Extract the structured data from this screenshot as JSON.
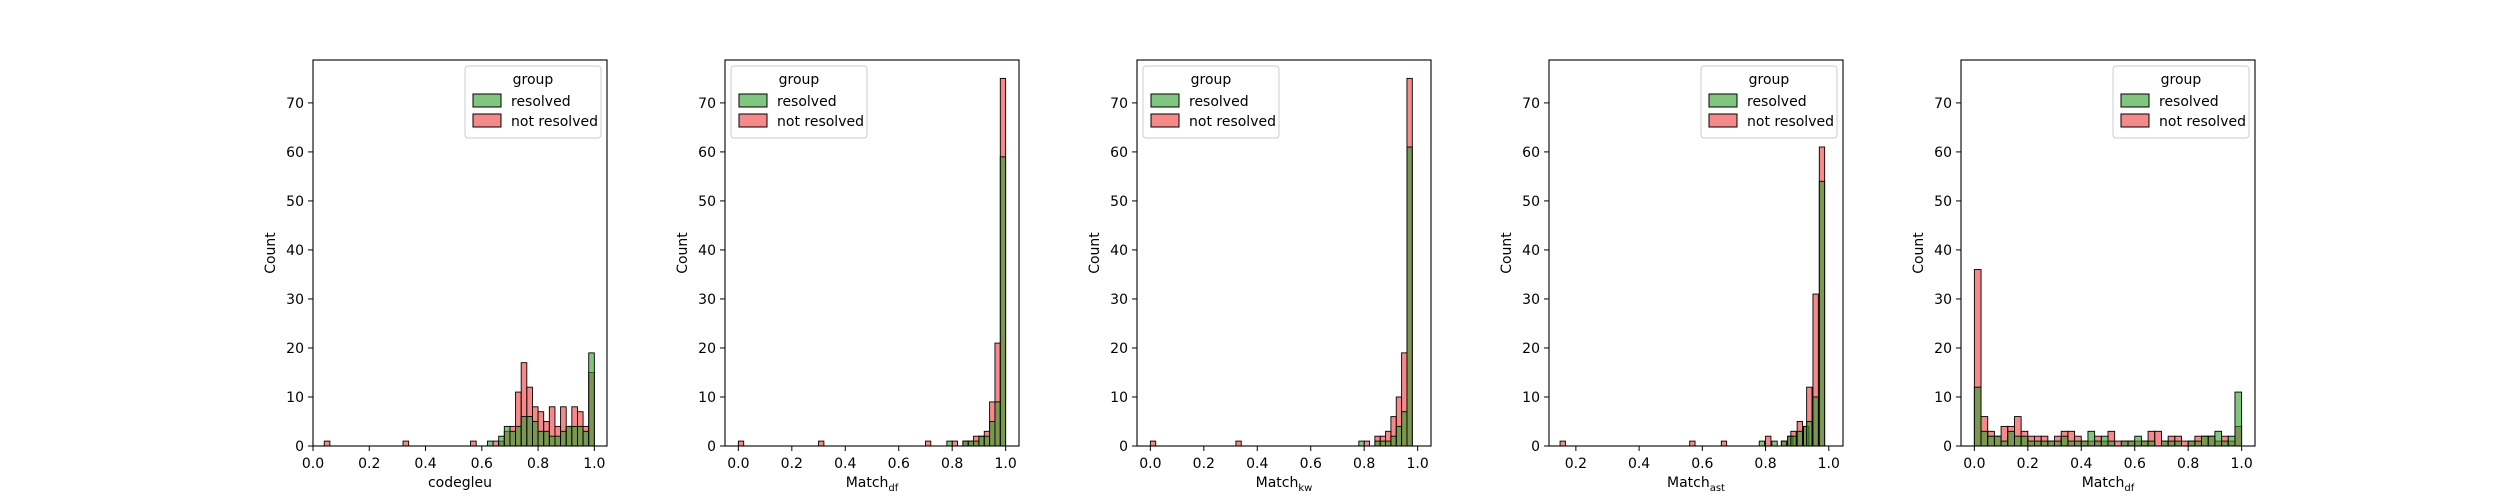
{
  "figure": {
    "background": "#ffffff"
  },
  "legend": {
    "title": "group",
    "entries": [
      {
        "label": "resolved",
        "fill": "#2ca02c",
        "stroke": "#000000"
      },
      {
        "label": "not resolved",
        "fill": "#f03c3c",
        "stroke": "#000000"
      }
    ]
  },
  "chart_data": [
    {
      "type": "histogram",
      "xlabel": "codegleu",
      "xlabel_sub": "",
      "ylabel": "Count",
      "xlim": [
        0.0,
        1.045
      ],
      "ylim": [
        0,
        78.75
      ],
      "xticks": [
        "0.0",
        "0.2",
        "0.4",
        "0.6",
        "0.8",
        "1.0"
      ],
      "yticks": [
        "0",
        "10",
        "20",
        "30",
        "40",
        "50",
        "60",
        "70"
      ],
      "legend_position": "upper-right",
      "bin_width": 0.02,
      "series": [
        {
          "name": "not resolved",
          "bins": [
            [
              0.04,
              1
            ],
            [
              0.32,
              1
            ],
            [
              0.56,
              1
            ],
            [
              0.64,
              1
            ],
            [
              0.66,
              1
            ],
            [
              0.68,
              3
            ],
            [
              0.7,
              4
            ],
            [
              0.72,
              11
            ],
            [
              0.74,
              17
            ],
            [
              0.76,
              12
            ],
            [
              0.78,
              8
            ],
            [
              0.8,
              7
            ],
            [
              0.82,
              5
            ],
            [
              0.84,
              8
            ],
            [
              0.86,
              4
            ],
            [
              0.88,
              8
            ],
            [
              0.9,
              4
            ],
            [
              0.92,
              8
            ],
            [
              0.94,
              7
            ],
            [
              0.96,
              4
            ],
            [
              0.98,
              15
            ]
          ]
        },
        {
          "name": "resolved",
          "bins": [
            [
              0.62,
              1
            ],
            [
              0.66,
              2
            ],
            [
              0.68,
              4
            ],
            [
              0.7,
              3
            ],
            [
              0.72,
              4
            ],
            [
              0.74,
              6
            ],
            [
              0.76,
              6
            ],
            [
              0.78,
              5
            ],
            [
              0.8,
              3
            ],
            [
              0.82,
              3
            ],
            [
              0.84,
              2
            ],
            [
              0.86,
              2
            ],
            [
              0.88,
              3
            ],
            [
              0.9,
              4
            ],
            [
              0.92,
              4
            ],
            [
              0.94,
              4
            ],
            [
              0.96,
              3
            ],
            [
              0.98,
              19
            ]
          ]
        }
      ]
    },
    {
      "type": "histogram",
      "xlabel": "Match",
      "xlabel_sub": "df",
      "ylabel": "Count",
      "xlim": [
        -0.05,
        1.05
      ],
      "ylim": [
        0,
        78.75
      ],
      "xticks": [
        "0.0",
        "0.2",
        "0.4",
        "0.6",
        "0.8",
        "1.0"
      ],
      "yticks": [
        "0",
        "10",
        "20",
        "30",
        "40",
        "50",
        "60",
        "70"
      ],
      "legend_position": "upper-left",
      "bin_width": 0.02,
      "series": [
        {
          "name": "not resolved",
          "bins": [
            [
              0.0,
              1
            ],
            [
              0.3,
              1
            ],
            [
              0.7,
              1
            ],
            [
              0.8,
              1
            ],
            [
              0.84,
              1
            ],
            [
              0.86,
              1
            ],
            [
              0.88,
              2
            ],
            [
              0.9,
              2
            ],
            [
              0.92,
              3
            ],
            [
              0.94,
              9
            ],
            [
              0.96,
              21
            ],
            [
              0.98,
              75
            ]
          ]
        },
        {
          "name": "resolved",
          "bins": [
            [
              0.78,
              1
            ],
            [
              0.84,
              1
            ],
            [
              0.86,
              1
            ],
            [
              0.88,
              1
            ],
            [
              0.9,
              2
            ],
            [
              0.92,
              2
            ],
            [
              0.94,
              5
            ],
            [
              0.96,
              9
            ],
            [
              0.98,
              59
            ]
          ]
        }
      ]
    },
    {
      "type": "histogram",
      "xlabel": "Match",
      "xlabel_sub": "kw",
      "ylabel": "Count",
      "xlim": [
        -0.05,
        1.05
      ],
      "ylim": [
        0,
        78.75
      ],
      "xticks": [
        "0.0",
        "0.2",
        "0.4",
        "0.6",
        "0.8",
        "1.0"
      ],
      "yticks": [
        "0",
        "10",
        "20",
        "30",
        "40",
        "50",
        "60",
        "70"
      ],
      "legend_position": "upper-left",
      "bin_width": 0.02,
      "series": [
        {
          "name": "not resolved",
          "bins": [
            [
              0.0,
              1
            ],
            [
              0.32,
              1
            ],
            [
              0.8,
              1
            ],
            [
              0.84,
              2
            ],
            [
              0.86,
              2
            ],
            [
              0.88,
              3
            ],
            [
              0.9,
              6
            ],
            [
              0.92,
              10
            ],
            [
              0.94,
              19
            ],
            [
              0.96,
              75
            ]
          ]
        },
        {
          "name": "resolved",
          "bins": [
            [
              0.78,
              1
            ],
            [
              0.84,
              1
            ],
            [
              0.86,
              1
            ],
            [
              0.88,
              1
            ],
            [
              0.9,
              2
            ],
            [
              0.92,
              4
            ],
            [
              0.94,
              7
            ],
            [
              0.96,
              61
            ]
          ]
        }
      ]
    },
    {
      "type": "histogram",
      "xlabel": "Match",
      "xlabel_sub": "ast",
      "ylabel": "Count",
      "xlim": [
        0.115,
        1.045
      ],
      "ylim": [
        0,
        78.75
      ],
      "xticks": [
        "0.2",
        "0.4",
        "0.6",
        "0.8",
        "1.0"
      ],
      "yticks": [
        "0",
        "10",
        "20",
        "30",
        "40",
        "50",
        "60",
        "70"
      ],
      "legend_position": "upper-right",
      "bin_width": 0.017,
      "series": [
        {
          "name": "not resolved",
          "bins": [
            [
              0.15,
              1
            ],
            [
              0.56,
              1
            ],
            [
              0.66,
              1
            ],
            [
              0.8,
              2
            ],
            [
              0.85,
              1
            ],
            [
              0.87,
              2
            ],
            [
              0.88,
              3
            ],
            [
              0.9,
              5
            ],
            [
              0.92,
              4
            ],
            [
              0.93,
              12
            ],
            [
              0.95,
              31
            ],
            [
              0.97,
              61
            ]
          ]
        },
        {
          "name": "resolved",
          "bins": [
            [
              0.78,
              1
            ],
            [
              0.82,
              1
            ],
            [
              0.85,
              1
            ],
            [
              0.87,
              2
            ],
            [
              0.88,
              2
            ],
            [
              0.9,
              3
            ],
            [
              0.92,
              4
            ],
            [
              0.93,
              5
            ],
            [
              0.95,
              10
            ],
            [
              0.97,
              54
            ]
          ]
        }
      ]
    },
    {
      "type": "histogram",
      "xlabel": "Match",
      "xlabel_sub": "df",
      "ylabel": "Count",
      "xlim": [
        -0.05,
        1.05
      ],
      "ylim": [
        0,
        78.75
      ],
      "xticks": [
        "0.0",
        "0.2",
        "0.4",
        "0.6",
        "0.8",
        "1.0"
      ],
      "yticks": [
        "0",
        "10",
        "20",
        "30",
        "40",
        "50",
        "60",
        "70"
      ],
      "legend_position": "upper-right",
      "bin_width": 0.025,
      "series": [
        {
          "name": "not resolved",
          "bins": [
            [
              0.0,
              36
            ],
            [
              0.025,
              6
            ],
            [
              0.05,
              3
            ],
            [
              0.075,
              2
            ],
            [
              0.1,
              4
            ],
            [
              0.125,
              4
            ],
            [
              0.15,
              6
            ],
            [
              0.175,
              3
            ],
            [
              0.2,
              2
            ],
            [
              0.225,
              2
            ],
            [
              0.25,
              2
            ],
            [
              0.275,
              1
            ],
            [
              0.3,
              2
            ],
            [
              0.325,
              3
            ],
            [
              0.35,
              3
            ],
            [
              0.375,
              2
            ],
            [
              0.4,
              1
            ],
            [
              0.425,
              1
            ],
            [
              0.45,
              2
            ],
            [
              0.475,
              1
            ],
            [
              0.5,
              3
            ],
            [
              0.525,
              1
            ],
            [
              0.55,
              1
            ],
            [
              0.575,
              1
            ],
            [
              0.6,
              1
            ],
            [
              0.625,
              1
            ],
            [
              0.65,
              3
            ],
            [
              0.675,
              3
            ],
            [
              0.7,
              1
            ],
            [
              0.725,
              2
            ],
            [
              0.75,
              2
            ],
            [
              0.775,
              1
            ],
            [
              0.8,
              1
            ],
            [
              0.825,
              2
            ],
            [
              0.85,
              2
            ],
            [
              0.875,
              2
            ],
            [
              0.9,
              1
            ],
            [
              0.925,
              2
            ],
            [
              0.95,
              1
            ],
            [
              0.975,
              4
            ]
          ]
        },
        {
          "name": "resolved",
          "bins": [
            [
              0.0,
              12
            ],
            [
              0.025,
              3
            ],
            [
              0.05,
              2
            ],
            [
              0.075,
              2
            ],
            [
              0.1,
              1
            ],
            [
              0.125,
              3
            ],
            [
              0.15,
              2
            ],
            [
              0.175,
              2
            ],
            [
              0.2,
              1
            ],
            [
              0.225,
              1
            ],
            [
              0.25,
              1
            ],
            [
              0.275,
              1
            ],
            [
              0.3,
              1
            ],
            [
              0.325,
              2
            ],
            [
              0.35,
              1
            ],
            [
              0.375,
              1
            ],
            [
              0.4,
              1
            ],
            [
              0.425,
              3
            ],
            [
              0.45,
              1
            ],
            [
              0.475,
              2
            ],
            [
              0.5,
              1
            ],
            [
              0.55,
              1
            ],
            [
              0.575,
              1
            ],
            [
              0.6,
              2
            ],
            [
              0.625,
              1
            ],
            [
              0.65,
              1
            ],
            [
              0.7,
              1
            ],
            [
              0.725,
              1
            ],
            [
              0.75,
              1
            ],
            [
              0.8,
              1
            ],
            [
              0.825,
              1
            ],
            [
              0.85,
              2
            ],
            [
              0.875,
              2
            ],
            [
              0.9,
              3
            ],
            [
              0.925,
              1
            ],
            [
              0.95,
              2
            ],
            [
              0.975,
              11
            ]
          ]
        }
      ]
    }
  ]
}
